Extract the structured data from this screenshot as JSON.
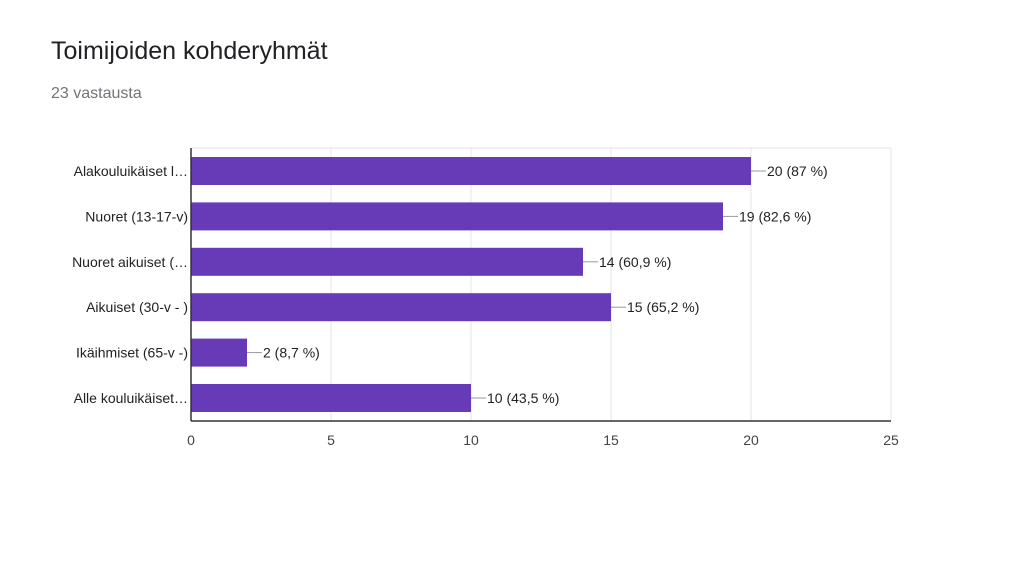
{
  "header": {
    "title": "Toimijoiden kohderyhmät",
    "response_count": "23 vastausta"
  },
  "colors": {
    "bar": "#673ab7",
    "grid": "#e6e6e6",
    "axis": "#333333",
    "label": "#222222",
    "tick": "#444444"
  },
  "chart_data": {
    "type": "bar",
    "orientation": "horizontal",
    "categories": [
      "Alakouluikäiset l…",
      "Nuoret (13-17-v)",
      "Nuoret aikuiset (…",
      "Aikuiset (30-v - )",
      "Ikäihmiset (65-v -)",
      "Alle kouluikäiset…"
    ],
    "values": [
      20,
      19,
      14,
      15,
      2,
      10
    ],
    "data_labels": [
      "20 (87 %)",
      "19 (82,6 %)",
      "14 (60,9 %)",
      "15 (65,2 %)",
      "2 (8,7 %)",
      "10 (43,5 %)"
    ],
    "xlim": [
      0,
      25
    ],
    "xticks": [
      "0",
      "5",
      "10",
      "15",
      "20",
      "25"
    ],
    "grid": true
  }
}
